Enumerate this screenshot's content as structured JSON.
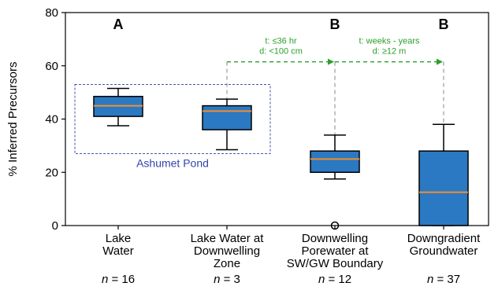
{
  "chart_data": {
    "type": "box",
    "ylabel": "% Inferred Precursors",
    "ylim": [
      0,
      80
    ],
    "yticks": [
      0,
      20,
      40,
      60,
      80
    ],
    "grid": false,
    "categories": [
      {
        "lines": [
          "Lake",
          "Water"
        ],
        "n_prefix": "n",
        "n_text": " = 16"
      },
      {
        "lines": [
          "Lake Water at",
          "Downwelling",
          "Zone"
        ],
        "n_prefix": "n",
        "n_text": " = 3"
      },
      {
        "lines": [
          "Downwelling",
          "Porewater at",
          "SW/GW Boundary"
        ],
        "n_prefix": "n",
        "n_text": " = 12"
      },
      {
        "lines": [
          "Downgradient",
          "Groundwater"
        ],
        "n_prefix": "n",
        "n_text": " = 37"
      }
    ],
    "boxes": [
      {
        "whisker_low": 37.5,
        "q1": 41,
        "median": 45,
        "q3": 48.5,
        "whisker_high": 51.5,
        "outliers": []
      },
      {
        "whisker_low": 28.5,
        "q1": 36,
        "median": 43,
        "q3": 45,
        "whisker_high": 47.5,
        "outliers": []
      },
      {
        "whisker_low": 17.5,
        "q1": 20,
        "median": 25,
        "q3": 28,
        "whisker_high": 34,
        "outliers": [
          0
        ]
      },
      {
        "whisker_low": 0,
        "q1": 0,
        "median": 12.5,
        "q3": 28,
        "whisker_high": 38,
        "outliers": []
      }
    ],
    "group_letters": [
      "A",
      "",
      "B",
      "B"
    ],
    "group_box": {
      "label": "Ashumet Pond",
      "covers": [
        0,
        1
      ],
      "y_low": 27,
      "y_high": 53
    },
    "transitions": [
      {
        "from": 1,
        "to": 2,
        "y": 61.5,
        "lines": [
          "t: ≤36 hr",
          "d: <100 cm"
        ]
      },
      {
        "from": 2,
        "to": 3,
        "y": 61.5,
        "lines": [
          "t: weeks - years",
          "d: ≥12 m"
        ]
      }
    ],
    "colors": {
      "box_fill": "#2b79c2",
      "median": "#f28e2b",
      "group_box": "#4455aa",
      "group_label": "#3344aa",
      "arrow": "#2ca02c",
      "dashed_guide": "#888888"
    }
  }
}
